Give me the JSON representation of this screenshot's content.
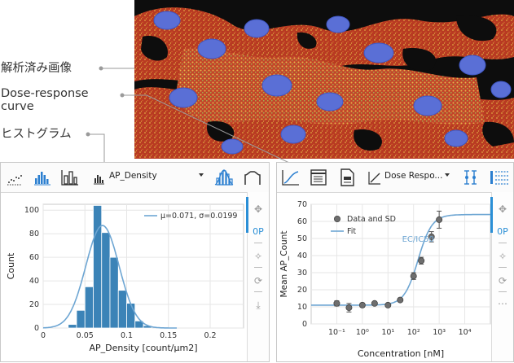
{
  "callouts": {
    "analyzed_image": "解析済み画像",
    "dose_response_line1": "Dose-response",
    "dose_response_line2": "curve",
    "histogram": "ヒストグラム"
  },
  "left_panel": {
    "dropdown_label": "AP_Density",
    "legend_text": "μ=0.071, σ=0.0199",
    "rail_text_icon": "0P"
  },
  "right_panel": {
    "dropdown_label": "Dose Respo...",
    "legend_points": "Data and SD",
    "legend_fit": "Fit",
    "annotation": "EC/IC50",
    "rail_text_icon": "0P"
  },
  "colors": {
    "histogram_bar": "#3b83b7",
    "fit_curve": "#6ea6d3",
    "data_point": "#6e6e6e",
    "accent": "#2b8fd6"
  },
  "chart_data": [
    {
      "type": "bar",
      "xlabel": "AP_Density [count/μm2]",
      "ylabel": "Count",
      "xlim": [
        0,
        0.24
      ],
      "ylim": [
        0,
        105
      ],
      "xticks": [
        "0",
        "0.05",
        "0.1",
        "0.15",
        "0.2"
      ],
      "yticks": [
        "0",
        "20",
        "40",
        "60",
        "80",
        "100"
      ],
      "grid": true,
      "legend": "top-right",
      "bin_width": 0.01,
      "bin_starts": [
        0.03,
        0.04,
        0.05,
        0.06,
        0.07,
        0.08,
        0.09,
        0.1,
        0.11,
        0.12
      ],
      "values": [
        3,
        15,
        35,
        104,
        81,
        60,
        32,
        21,
        6,
        2
      ],
      "fit": {
        "name": "μ=0.071, σ=0.0199",
        "mu": 0.071,
        "sigma": 0.0199,
        "peak": 87
      }
    },
    {
      "type": "scatter",
      "xlabel": "Concentration [nM]",
      "ylabel": "Mean AP_Count",
      "xscale": "log",
      "xlim": [
        0.01,
        100000
      ],
      "ylim": [
        0,
        70
      ],
      "xticks": [
        "10⁻¹",
        "10⁰",
        "10¹",
        "10²",
        "10³",
        "10⁴"
      ],
      "yticks": [
        "0",
        "10",
        "20",
        "30",
        "40",
        "50",
        "60",
        "70"
      ],
      "grid": true,
      "legend": "top-left",
      "series": [
        {
          "name": "Data and SD",
          "x": [
            0.1,
            0.3,
            1,
            3,
            10,
            30,
            100,
            200,
            500,
            1000
          ],
          "y": [
            12,
            9.5,
            11,
            12,
            11,
            14,
            28,
            37,
            51,
            61
          ],
          "sd": [
            1.5,
            2.5,
            1.2,
            1.0,
            0.8,
            1.0,
            2.0,
            2.0,
            3.0,
            5.0
          ]
        }
      ],
      "fit": {
        "name": "Fit",
        "bottom": 11,
        "top": 64,
        "ec50": 150,
        "hill": 1.6
      },
      "annotations": [
        {
          "text": "EC/IC50",
          "x": 150,
          "y": 48
        }
      ]
    }
  ]
}
